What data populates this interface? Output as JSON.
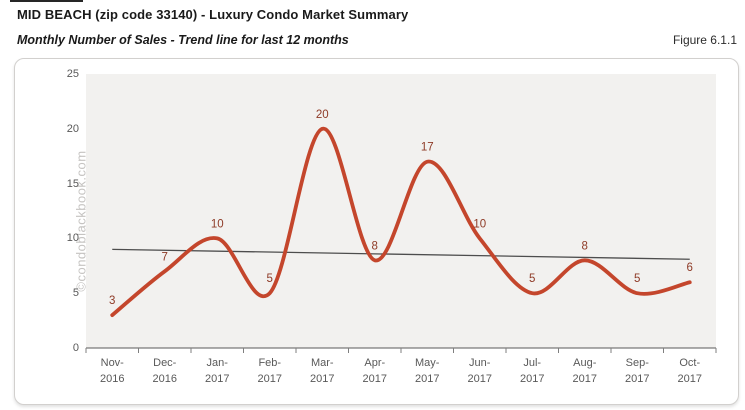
{
  "header": {
    "title": "MID BEACH (zip code 33140) - Luxury Condo Market Summary",
    "subtitle": "Monthly Number of Sales - Trend line for last 12 months",
    "figure_label": "Figure 6.1.1"
  },
  "watermark": "©condoblackbook.com",
  "chart_data": {
    "type": "line",
    "title": "Monthly Number of Sales - Trend line for last 12 months",
    "categories": [
      "Nov-2016",
      "Dec-2016",
      "Jan-2017",
      "Feb-2017",
      "Mar-2017",
      "Apr-2017",
      "May-2017",
      "Jun-2017",
      "Jul-2017",
      "Aug-2017",
      "Sep-2017",
      "Oct-2017"
    ],
    "series": [
      {
        "name": "Monthly Number of Sales",
        "kind": "smooth-line",
        "values": [
          3,
          7,
          10,
          5,
          20,
          8,
          17,
          10,
          5,
          8,
          5,
          6
        ],
        "color": "#c4462c",
        "label_color": "#8e3a26",
        "data_labels": true
      },
      {
        "name": "Trend line",
        "kind": "linear-trend",
        "start": 9.0,
        "end": 8.1,
        "color": "#4d4d4d"
      }
    ],
    "ylim": [
      0,
      25
    ],
    "ytick_step": 5,
    "grid": false,
    "legend": "none",
    "plot_bg": "#f2f1ef",
    "axis_color": "#595959",
    "tick_color": "#7f7f7f",
    "tick_label_color": "#595959"
  }
}
